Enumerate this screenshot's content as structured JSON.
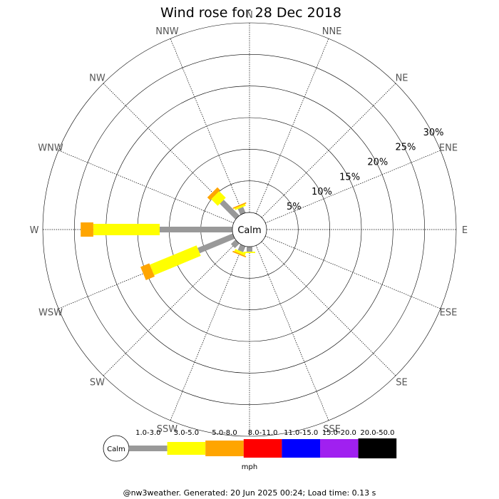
{
  "chart_data": {
    "type": "wind-rose",
    "title": "Wind rose for 28 Dec 2018",
    "directions": [
      "N",
      "NNE",
      "NE",
      "ENE",
      "E",
      "ESE",
      "SE",
      "SSE",
      "S",
      "SSW",
      "SW",
      "WSW",
      "W",
      "WNW",
      "NW",
      "NNW"
    ],
    "radial_ticks": [
      "5%",
      "10%",
      "15%",
      "20%",
      "25%",
      "30%"
    ],
    "radial_values": [
      5,
      10,
      15,
      20,
      25,
      30
    ],
    "rmax": 30,
    "calm_label": "Calm",
    "legend": {
      "unit": "mph",
      "calm_label": "Calm",
      "bins": [
        {
          "range": "1.0-3.0",
          "color": "#999999"
        },
        {
          "range": "3.0-5.0",
          "color": "#ffff00"
        },
        {
          "range": "5.0-8.0",
          "color": "#ffa500"
        },
        {
          "range": "8.0-11.0",
          "color": "#ff0000"
        },
        {
          "range": "11.0-15.0",
          "color": "#0000ff"
        },
        {
          "range": "15.0-20.0",
          "color": "#a020f0"
        },
        {
          "range": "20.0-50.0",
          "color": "#000000"
        }
      ]
    },
    "series": [
      {
        "name": "1.0-3.0",
        "color": "#999999",
        "values": [
          0,
          0,
          0,
          0,
          0,
          0,
          0,
          0,
          0.8,
          1.0,
          1.0,
          6.0,
          11.5,
          0,
          3.5,
          1.0
        ]
      },
      {
        "name": "3.0-5.0",
        "color": "#ffff00",
        "values": [
          0,
          0,
          0,
          0,
          0,
          0,
          0,
          0,
          0.2,
          0.4,
          0,
          8.0,
          10.5,
          0,
          1.5,
          0.3
        ]
      },
      {
        "name": "5.0-8.0",
        "color": "#ffa500",
        "values": [
          0,
          0,
          0,
          0,
          0,
          0,
          0,
          0,
          0,
          0.2,
          0,
          1.5,
          2.0,
          0,
          0.6,
          0.2
        ]
      }
    ]
  },
  "footer": "@nw3weather. Generated: 20 Jun 2025 00:24; Load time: 0.13 s"
}
